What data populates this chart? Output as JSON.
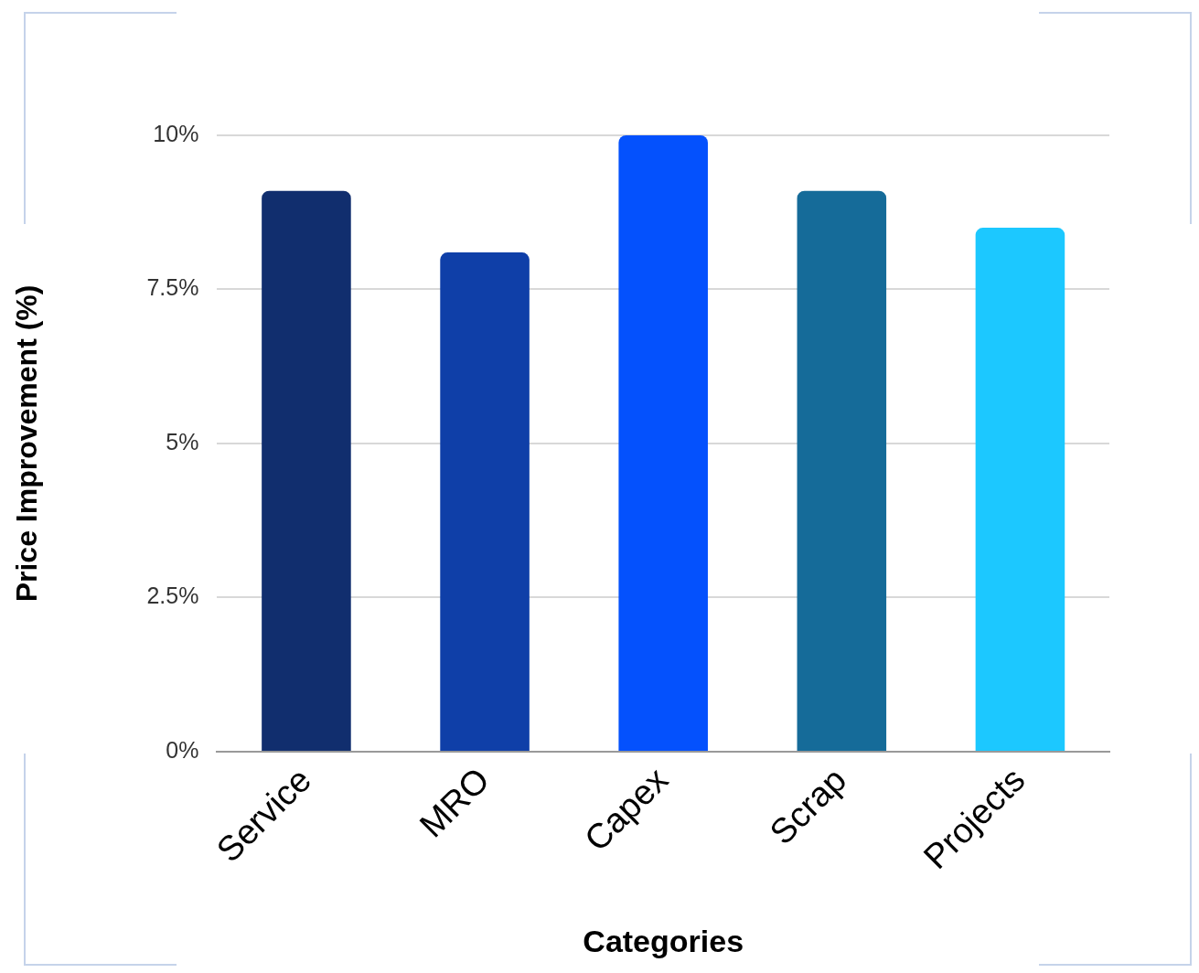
{
  "chart_data": {
    "type": "bar",
    "xlabel": "Categories",
    "ylabel": "Price Improvement (%)",
    "categories": [
      "Service",
      "MRO",
      "Capex",
      "Scrap",
      "Projects"
    ],
    "values": [
      9.1,
      8.1,
      10,
      9.1,
      8.5
    ],
    "colors": [
      "#112e6e",
      "#0f3fa8",
      "#0451fd",
      "#156b99",
      "#1cc8ff"
    ],
    "ylim": [
      0,
      10
    ],
    "yticks": [
      {
        "value": 0,
        "label": "0%"
      },
      {
        "value": 2.5,
        "label": "2.5%"
      },
      {
        "value": 5,
        "label": "5%"
      },
      {
        "value": 7.5,
        "label": "7.5%"
      },
      {
        "value": 10,
        "label": "10%"
      }
    ],
    "grid": "y",
    "legend": false
  }
}
